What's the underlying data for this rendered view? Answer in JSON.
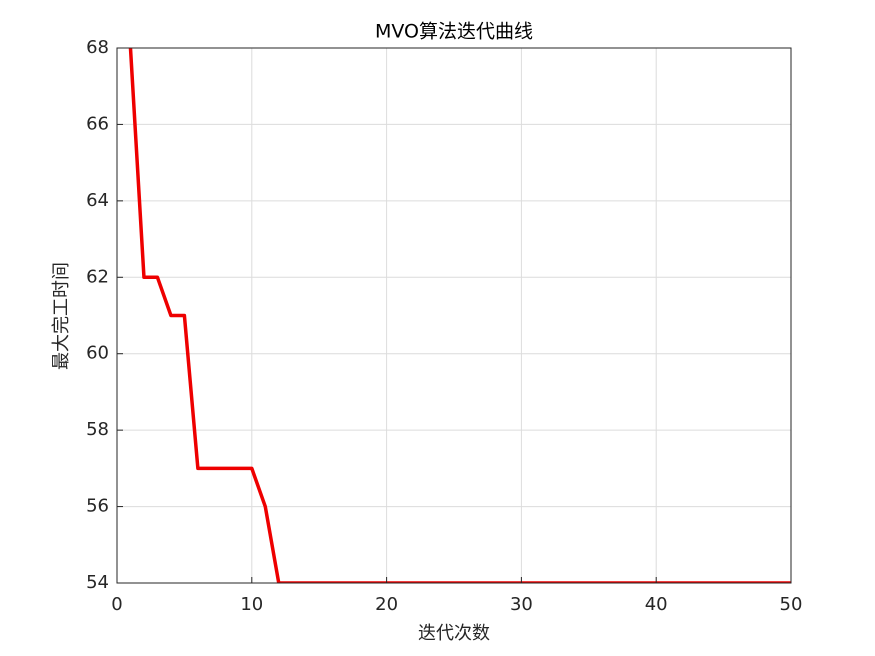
{
  "chart_data": {
    "type": "line",
    "title": "MVO算法迭代曲线",
    "x_label": "迭代次数",
    "y_label": "最大完工时间",
    "x": [
      1,
      2,
      3,
      4,
      5,
      6,
      7,
      8,
      9,
      10,
      11,
      12,
      13,
      14,
      15,
      16,
      17,
      18,
      19,
      20,
      21,
      22,
      23,
      24,
      25,
      26,
      27,
      28,
      29,
      30,
      31,
      32,
      33,
      34,
      35,
      36,
      37,
      38,
      39,
      40,
      41,
      42,
      43,
      44,
      45,
      46,
      47,
      48,
      49,
      50
    ],
    "series": [
      {
        "name": "MVO",
        "color": "#ee0000",
        "values": [
          68,
          62,
          62,
          61,
          61,
          57,
          57,
          57,
          57,
          57,
          56,
          54,
          54,
          54,
          54,
          54,
          54,
          54,
          54,
          54,
          54,
          54,
          54,
          54,
          54,
          54,
          54,
          54,
          54,
          54,
          54,
          54,
          54,
          54,
          54,
          54,
          54,
          54,
          54,
          54,
          54,
          54,
          54,
          54,
          54,
          54,
          54,
          54,
          54,
          54
        ]
      }
    ],
    "xlim": [
      0,
      50
    ],
    "xticks": [
      0,
      10,
      20,
      30,
      40,
      50
    ],
    "ylim": [
      54,
      68
    ],
    "yticks": [
      54,
      56,
      58,
      60,
      62,
      64,
      66,
      68
    ],
    "grid": true
  }
}
